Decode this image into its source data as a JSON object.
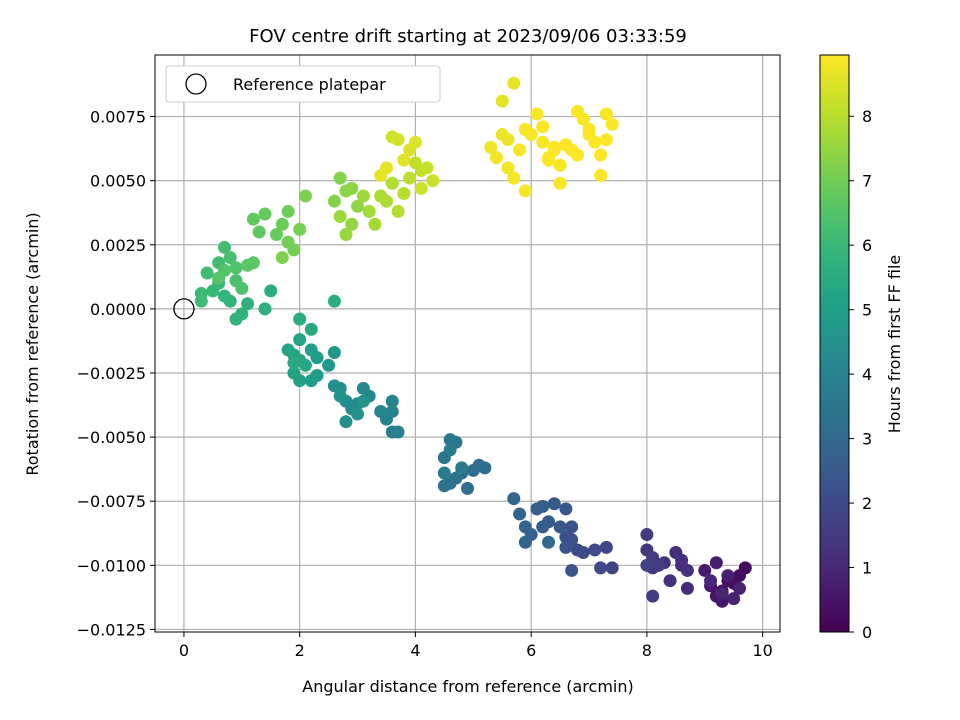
{
  "chart_data": {
    "type": "scatter",
    "title": "FOV centre drift starting at 2023/09/06 03:33:59",
    "xlabel": "Angular distance from reference (arcmin)",
    "ylabel": "Rotation from reference (arcmin)",
    "xlim": [
      -0.5,
      10.3
    ],
    "ylim": [
      -0.0126,
      0.0099
    ],
    "xticks": [
      0,
      2,
      4,
      6,
      8,
      10
    ],
    "xtick_labels": [
      "0",
      "2",
      "4",
      "6",
      "8",
      "10"
    ],
    "yticks": [
      -0.0125,
      -0.01,
      -0.0075,
      -0.005,
      -0.0025,
      0.0,
      0.0025,
      0.005,
      0.0075
    ],
    "ytick_labels": [
      "−0.0125",
      "−0.0100",
      "−0.0075",
      "−0.0050",
      "−0.0025",
      "0.0000",
      "0.0025",
      "0.0050",
      "0.0075"
    ],
    "grid": true,
    "legend": {
      "position": "upper-left",
      "entries": [
        "Reference platepar"
      ]
    },
    "colorbar": {
      "label": "Hours from first FF file",
      "range": [
        0,
        8.95
      ],
      "colormap": "viridis",
      "ticks": [
        0,
        1,
        2,
        3,
        4,
        5,
        6,
        7,
        8
      ],
      "tick_labels": [
        "0",
        "1",
        "2",
        "3",
        "4",
        "5",
        "6",
        "7",
        "8"
      ]
    },
    "reference_point": {
      "x": 0,
      "y": 0,
      "label": "Reference platepar"
    },
    "series": [
      {
        "color_by": "hours",
        "points": [
          [
            9.7,
            -0.0101,
            0.2
          ],
          [
            9.6,
            -0.0104,
            0.3
          ],
          [
            9.5,
            -0.0107,
            0.35
          ],
          [
            9.4,
            -0.0106,
            0.4
          ],
          [
            9.3,
            -0.011,
            0.45
          ],
          [
            9.2,
            -0.0112,
            0.5
          ],
          [
            9.3,
            -0.0114,
            0.55
          ],
          [
            9.1,
            -0.0108,
            0.6
          ],
          [
            9.0,
            -0.0102,
            0.7
          ],
          [
            9.2,
            -0.0099,
            0.75
          ],
          [
            9.4,
            -0.0104,
            0.8
          ],
          [
            9.6,
            -0.0109,
            0.85
          ],
          [
            9.5,
            -0.0113,
            0.9
          ],
          [
            9.3,
            -0.0111,
            0.95
          ],
          [
            9.1,
            -0.0106,
            1.0
          ],
          [
            8.7,
            -0.0109,
            1.05
          ],
          [
            8.6,
            -0.01,
            1.1
          ],
          [
            8.5,
            -0.0095,
            1.15
          ],
          [
            8.6,
            -0.0098,
            1.2
          ],
          [
            8.7,
            -0.0102,
            1.25
          ],
          [
            8.4,
            -0.0106,
            1.3
          ],
          [
            8.3,
            -0.0099,
            1.35
          ],
          [
            8.1,
            -0.0101,
            1.4
          ],
          [
            8.0,
            -0.0094,
            1.45
          ],
          [
            8.1,
            -0.0097,
            1.5
          ],
          [
            8.2,
            -0.01,
            1.55
          ],
          [
            8.0,
            -0.0088,
            1.6
          ],
          [
            8.1,
            -0.0112,
            1.65
          ],
          [
            8.0,
            -0.01,
            1.75
          ],
          [
            7.4,
            -0.0101,
            1.85
          ],
          [
            7.3,
            -0.0093,
            1.9
          ],
          [
            7.2,
            -0.0101,
            1.95
          ],
          [
            7.1,
            -0.0094,
            2.0
          ],
          [
            6.9,
            -0.0095,
            2.05
          ],
          [
            6.8,
            -0.0094,
            2.1
          ],
          [
            6.7,
            -0.009,
            2.15
          ],
          [
            6.6,
            -0.0089,
            2.2
          ],
          [
            6.6,
            -0.0093,
            2.25
          ],
          [
            6.7,
            -0.0085,
            2.3
          ],
          [
            6.7,
            -0.0102,
            2.35
          ],
          [
            6.6,
            -0.0078,
            2.4
          ],
          [
            6.5,
            -0.0085,
            2.45
          ],
          [
            6.4,
            -0.0076,
            2.5
          ],
          [
            6.3,
            -0.0083,
            2.55
          ],
          [
            6.2,
            -0.0077,
            2.6
          ],
          [
            6.2,
            -0.0085,
            2.65
          ],
          [
            6.1,
            -0.0078,
            2.7
          ],
          [
            6.0,
            -0.0088,
            2.75
          ],
          [
            5.9,
            -0.0091,
            2.8
          ],
          [
            5.9,
            -0.0085,
            2.85
          ],
          [
            5.8,
            -0.008,
            2.9
          ],
          [
            5.7,
            -0.0074,
            2.95
          ],
          [
            6.3,
            -0.0091,
            3.0
          ],
          [
            5.2,
            -0.0062,
            3.1
          ],
          [
            5.1,
            -0.0061,
            3.15
          ],
          [
            5.0,
            -0.0063,
            3.2
          ],
          [
            4.9,
            -0.007,
            3.25
          ],
          [
            4.8,
            -0.0064,
            3.3
          ],
          [
            4.7,
            -0.0066,
            3.35
          ],
          [
            4.6,
            -0.0068,
            3.4
          ],
          [
            4.5,
            -0.0069,
            3.45
          ],
          [
            4.5,
            -0.0058,
            3.5
          ],
          [
            4.6,
            -0.0051,
            3.55
          ],
          [
            4.7,
            -0.0052,
            3.6
          ],
          [
            4.8,
            -0.0062,
            3.65
          ],
          [
            4.5,
            -0.0064,
            3.7
          ],
          [
            4.6,
            -0.0055,
            3.75
          ],
          [
            3.6,
            -0.0048,
            3.85
          ],
          [
            3.7,
            -0.0048,
            3.9
          ],
          [
            3.5,
            -0.0043,
            3.95
          ],
          [
            3.6,
            -0.004,
            4.0
          ],
          [
            3.6,
            -0.0036,
            4.05
          ],
          [
            3.4,
            -0.004,
            4.1
          ],
          [
            3.2,
            -0.0034,
            4.15
          ],
          [
            3.1,
            -0.0031,
            4.2
          ],
          [
            3.0,
            -0.0037,
            4.25
          ],
          [
            2.9,
            -0.0039,
            4.3
          ],
          [
            2.8,
            -0.0036,
            4.35
          ],
          [
            2.7,
            -0.0031,
            4.4
          ],
          [
            2.6,
            -0.003,
            4.45
          ],
          [
            2.8,
            -0.0044,
            4.5
          ],
          [
            3.0,
            -0.0041,
            4.55
          ],
          [
            3.1,
            -0.0036,
            4.6
          ],
          [
            2.7,
            -0.0034,
            4.65
          ],
          [
            2.6,
            -0.0017,
            4.75
          ],
          [
            2.5,
            -0.0022,
            4.8
          ],
          [
            2.3,
            -0.0026,
            4.85
          ],
          [
            2.2,
            -0.0028,
            4.9
          ],
          [
            2.3,
            -0.0019,
            4.95
          ],
          [
            2.2,
            -0.0016,
            5.0
          ],
          [
            2.0,
            -0.0028,
            5.05
          ],
          [
            1.9,
            -0.0025,
            5.1
          ],
          [
            1.9,
            -0.0018,
            5.15
          ],
          [
            2.0,
            -0.0012,
            5.2
          ],
          [
            1.8,
            -0.0016,
            5.25
          ],
          [
            2.1,
            -0.0022,
            5.3
          ],
          [
            2.0,
            -0.002,
            5.35
          ],
          [
            1.9,
            -0.0021,
            5.4
          ],
          [
            2.2,
            -0.0008,
            5.45
          ],
          [
            2.0,
            -0.0004,
            5.5
          ],
          [
            2.6,
            0.0003,
            5.55
          ],
          [
            1.5,
            0.0007,
            5.6
          ],
          [
            1.4,
            0.0,
            5.65
          ],
          [
            1.1,
            0.0002,
            5.7
          ],
          [
            1.0,
            -0.0002,
            5.75
          ],
          [
            0.9,
            -0.0004,
            5.8
          ],
          [
            0.8,
            0.0003,
            5.85
          ],
          [
            0.7,
            0.0005,
            5.9
          ],
          [
            0.6,
            0.001,
            5.95
          ],
          [
            0.5,
            0.0007,
            6.0
          ],
          [
            0.3,
            0.0006,
            6.05
          ],
          [
            0.3,
            0.0003,
            6.1
          ],
          [
            0.4,
            0.0014,
            6.15
          ],
          [
            0.6,
            0.0018,
            6.2
          ],
          [
            0.7,
            0.0024,
            6.25
          ],
          [
            0.8,
            0.002,
            6.3
          ],
          [
            0.9,
            0.0011,
            6.35
          ],
          [
            1.0,
            0.0008,
            6.4
          ],
          [
            0.9,
            0.0016,
            6.45
          ],
          [
            0.7,
            0.0015,
            6.5
          ],
          [
            0.6,
            0.0012,
            6.55
          ],
          [
            1.1,
            0.0017,
            6.6
          ],
          [
            1.2,
            0.0018,
            6.65
          ],
          [
            1.3,
            0.003,
            6.7
          ],
          [
            1.2,
            0.0035,
            6.75
          ],
          [
            1.4,
            0.0037,
            6.8
          ],
          [
            1.6,
            0.0029,
            6.85
          ],
          [
            1.7,
            0.0033,
            6.9
          ],
          [
            1.8,
            0.0038,
            6.95
          ],
          [
            1.8,
            0.0026,
            7.0
          ],
          [
            1.9,
            0.0023,
            7.05
          ],
          [
            2.0,
            0.0031,
            7.1
          ],
          [
            2.1,
            0.0044,
            7.15
          ],
          [
            1.7,
            0.002,
            7.2
          ],
          [
            2.6,
            0.0042,
            7.25
          ],
          [
            2.7,
            0.0051,
            7.3
          ],
          [
            2.8,
            0.0046,
            7.35
          ],
          [
            2.9,
            0.0047,
            7.4
          ],
          [
            3.0,
            0.004,
            7.45
          ],
          [
            2.9,
            0.0033,
            7.5
          ],
          [
            2.8,
            0.0029,
            7.55
          ],
          [
            2.7,
            0.0036,
            7.6
          ],
          [
            3.1,
            0.0044,
            7.65
          ],
          [
            3.2,
            0.0038,
            7.7
          ],
          [
            3.3,
            0.0033,
            7.75
          ],
          [
            3.4,
            0.0044,
            7.8
          ],
          [
            3.5,
            0.0042,
            7.85
          ],
          [
            3.6,
            0.0049,
            7.9
          ],
          [
            3.7,
            0.0038,
            7.95
          ],
          [
            3.8,
            0.0045,
            8.0
          ],
          [
            3.9,
            0.0051,
            8.05
          ],
          [
            4.0,
            0.0057,
            8.1
          ],
          [
            4.1,
            0.0054,
            8.15
          ],
          [
            4.2,
            0.0055,
            8.2
          ],
          [
            4.3,
            0.005,
            8.25
          ],
          [
            4.1,
            0.0047,
            8.3
          ],
          [
            3.6,
            0.0067,
            8.35
          ],
          [
            3.7,
            0.0066,
            8.4
          ],
          [
            3.9,
            0.0062,
            8.45
          ],
          [
            4.0,
            0.0065,
            8.5
          ],
          [
            3.8,
            0.0058,
            8.55
          ],
          [
            3.5,
            0.0055,
            8.6
          ],
          [
            3.4,
            0.0052,
            8.65
          ]
        ],
        "yellow_points": [
          [
            5.5,
            0.0081,
            8.6
          ],
          [
            5.7,
            0.0088,
            8.65
          ],
          [
            5.5,
            0.0068,
            8.7
          ],
          [
            5.6,
            0.0066,
            8.72
          ],
          [
            5.3,
            0.0063,
            8.75
          ],
          [
            5.4,
            0.0059,
            8.78
          ],
          [
            5.6,
            0.0055,
            8.8
          ],
          [
            5.7,
            0.0051,
            8.82
          ],
          [
            5.9,
            0.0046,
            8.84
          ],
          [
            5.8,
            0.0062,
            8.86
          ],
          [
            5.9,
            0.007,
            8.88
          ],
          [
            6.0,
            0.0068,
            8.9
          ],
          [
            6.1,
            0.0076,
            8.9
          ],
          [
            6.2,
            0.0071,
            8.9
          ],
          [
            6.2,
            0.0065,
            8.9
          ],
          [
            6.3,
            0.0059,
            8.9
          ],
          [
            6.4,
            0.0063,
            8.9
          ],
          [
            6.5,
            0.0056,
            8.9
          ],
          [
            6.5,
            0.0049,
            8.9
          ],
          [
            6.6,
            0.0064,
            8.9
          ],
          [
            6.7,
            0.0062,
            8.9
          ],
          [
            6.8,
            0.0077,
            8.9
          ],
          [
            6.9,
            0.0074,
            8.9
          ],
          [
            7.0,
            0.0068,
            8.9
          ],
          [
            7.1,
            0.0065,
            8.9
          ],
          [
            7.2,
            0.006,
            8.9
          ],
          [
            7.3,
            0.0076,
            8.9
          ],
          [
            7.3,
            0.0066,
            8.9
          ],
          [
            7.4,
            0.0072,
            8.9
          ],
          [
            7.2,
            0.0052,
            8.9
          ],
          [
            7.0,
            0.007,
            8.9
          ],
          [
            6.8,
            0.006,
            8.9
          ],
          [
            6.4,
            0.0062,
            8.9
          ],
          [
            6.3,
            0.0058,
            8.9
          ]
        ]
      }
    ]
  }
}
